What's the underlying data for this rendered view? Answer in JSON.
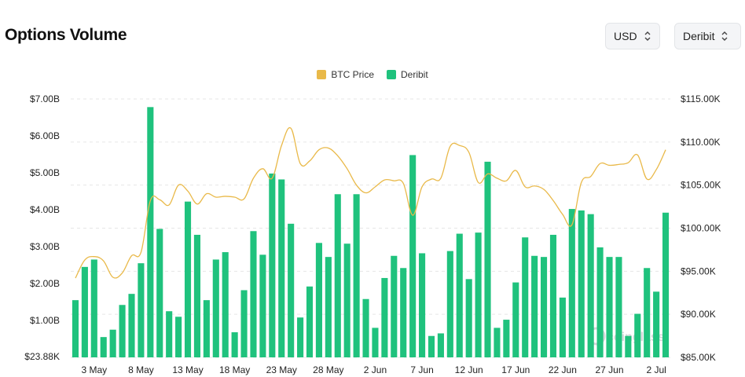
{
  "header": {
    "title": "Options Volume",
    "currency_label": "USD",
    "exchange_label": "Deribit"
  },
  "colors": {
    "btc_price": "#e9b949",
    "deribit": "#1fc27d",
    "grid": "#e6e6e6"
  },
  "icons": {
    "currency_chevron": "chevron-up-down-icon",
    "exchange_chevron": "chevron-up-down-icon"
  },
  "watermark": "coinglass",
  "chart_data": {
    "type": "bar",
    "legend": [
      {
        "name": "BTC Price",
        "color": "#e9b949",
        "kind": "line"
      },
      {
        "name": "Deribit",
        "color": "#1fc27d",
        "kind": "bar"
      }
    ],
    "legend_position": "top-center",
    "grid": true,
    "left_axis": {
      "ticks": [
        {
          "value": 0.02388,
          "label": "$23.88K"
        },
        {
          "value": 1,
          "label": "$1.00B"
        },
        {
          "value": 2,
          "label": "$2.00B"
        },
        {
          "value": 3,
          "label": "$3.00B"
        },
        {
          "value": 4,
          "label": "$4.00B"
        },
        {
          "value": 5,
          "label": "$5.00B"
        },
        {
          "value": 6,
          "label": "$6.00B"
        },
        {
          "value": 7,
          "label": "$7.00B"
        }
      ],
      "range": [
        0,
        7
      ],
      "unit": "billion USD"
    },
    "right_axis": {
      "ticks": [
        {
          "value": 85000,
          "label": "$85.00K"
        },
        {
          "value": 90000,
          "label": "$90.00K"
        },
        {
          "value": 95000,
          "label": "$95.00K"
        },
        {
          "value": 100000,
          "label": "$100.00K"
        },
        {
          "value": 105000,
          "label": "$105.00K"
        },
        {
          "value": 110000,
          "label": "$110.00K"
        },
        {
          "value": 115000,
          "label": "$115.00K"
        }
      ],
      "range": [
        85000,
        115000
      ]
    },
    "x_labels": [
      {
        "index": 2,
        "label": "3 May"
      },
      {
        "index": 7,
        "label": "8 May"
      },
      {
        "index": 12,
        "label": "13 May"
      },
      {
        "index": 17,
        "label": "18 May"
      },
      {
        "index": 22,
        "label": "23 May"
      },
      {
        "index": 27,
        "label": "28 May"
      },
      {
        "index": 32,
        "label": "2 Jun"
      },
      {
        "index": 37,
        "label": "7 Jun"
      },
      {
        "index": 42,
        "label": "12 Jun"
      },
      {
        "index": 47,
        "label": "17 Jun"
      },
      {
        "index": 52,
        "label": "22 Jun"
      },
      {
        "index": 57,
        "label": "27 Jun"
      },
      {
        "index": 62,
        "label": "2 Jul"
      }
    ],
    "series": [
      {
        "name": "Deribit",
        "type": "bar",
        "axis": "left",
        "values": [
          1.55,
          2.45,
          2.65,
          0.55,
          0.75,
          1.42,
          1.72,
          2.55,
          6.78,
          3.48,
          1.25,
          1.1,
          4.22,
          3.32,
          1.55,
          2.65,
          2.85,
          0.68,
          1.82,
          3.42,
          2.78,
          4.98,
          4.82,
          3.62,
          1.08,
          1.92,
          3.1,
          2.72,
          4.42,
          3.08,
          4.42,
          1.58,
          0.8,
          2.15,
          2.75,
          2.42,
          5.48,
          2.82,
          0.58,
          0.65,
          2.88,
          3.35,
          2.12,
          3.38,
          5.3,
          0.8,
          1.02,
          2.03,
          3.25,
          2.75,
          2.72,
          3.32,
          1.62,
          4.02,
          3.98,
          3.88,
          2.98,
          2.72,
          2.72,
          0.58,
          1.18,
          2.42,
          1.78,
          3.92
        ]
      },
      {
        "name": "BTC Price",
        "type": "line",
        "axis": "right",
        "values": [
          94200,
          96300,
          96700,
          96200,
          94300,
          94800,
          96800,
          97200,
          103200,
          103300,
          102700,
          105000,
          104300,
          102800,
          104000,
          103600,
          103700,
          103600,
          103400,
          105800,
          106900,
          105800,
          109600,
          111600,
          107500,
          107800,
          109100,
          109300,
          108400,
          106900,
          105000,
          104100,
          104800,
          105600,
          105500,
          105200,
          101500,
          104800,
          105700,
          105800,
          109500,
          109600,
          108800,
          105300,
          106300,
          105800,
          105500,
          106700,
          104800,
          104900,
          104500,
          103200,
          101600,
          100400,
          105300,
          106000,
          107500,
          107300,
          107400,
          107600,
          108500,
          105700,
          106800,
          109100
        ]
      }
    ]
  }
}
